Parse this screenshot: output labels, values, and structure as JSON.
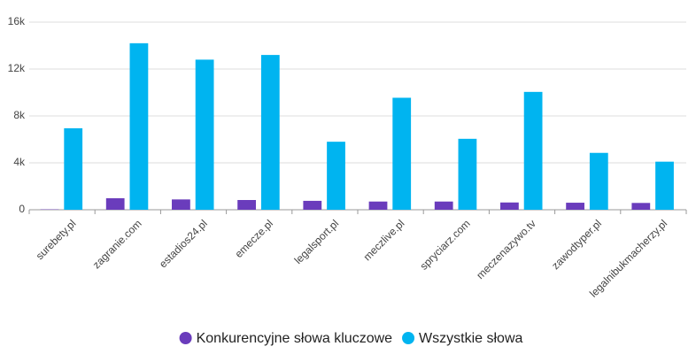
{
  "chart_data": {
    "type": "bar",
    "categories": [
      "surebety.pl",
      "zagranie.com",
      "estadios24.pl",
      "emecze.pl",
      "legalsport.pl",
      "meczlive.pl",
      "spryciarz.com",
      "meczenazywo.tv",
      "zawodtyper.pl",
      "legalnibukmacherzy.pl"
    ],
    "series": [
      {
        "name": "Konkurencyjne słowa kluczowe",
        "color": "#6a3cbc",
        "values": [
          30,
          980,
          880,
          830,
          760,
          700,
          700,
          620,
          600,
          580
        ]
      },
      {
        "name": "Wszystkie słowa",
        "color": "#00b4f0",
        "values": [
          6950,
          14200,
          12800,
          13200,
          5800,
          9550,
          6050,
          10050,
          4850,
          4100
        ]
      }
    ],
    "ylim": [
      0,
      16000
    ],
    "yticks": [
      0,
      {
        "value": 4000,
        "label": "4k"
      },
      {
        "value": 8000,
        "label": "8k"
      },
      {
        "value": 12000,
        "label": "12k"
      },
      {
        "value": 16000,
        "label": "16k"
      }
    ],
    "grid": true,
    "legend": "bottom"
  }
}
